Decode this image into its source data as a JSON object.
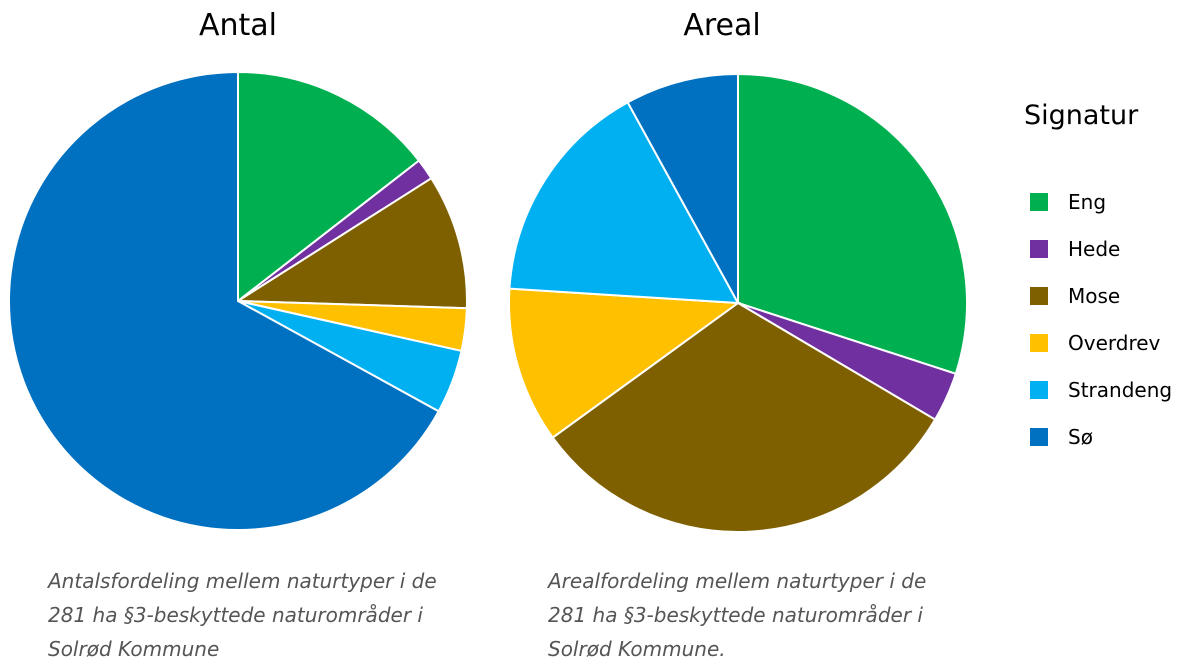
{
  "chart_data": [
    {
      "type": "pie",
      "title": "Antal",
      "categories": [
        "Eng",
        "Hede",
        "Mose",
        "Overdrev",
        "Strandeng",
        "Sø"
      ],
      "values": [
        14.5,
        1.5,
        9.5,
        3.0,
        4.5,
        67.0
      ],
      "caption": "Antalsfordeling mellem naturtyper i de 281 ha §3-beskyttede naturområder i Solrød Kommune"
    },
    {
      "type": "pie",
      "title": "Areal",
      "categories": [
        "Eng",
        "Hede",
        "Mose",
        "Overdrev",
        "Strandeng",
        "Sø"
      ],
      "values": [
        30.0,
        3.5,
        31.5,
        11.0,
        16.0,
        8.0
      ],
      "caption": "Arealfordeling mellem naturtyper i de 281 ha §3-beskyttede naturområder i Solrød Kommune."
    }
  ],
  "legend": {
    "title": "Signatur",
    "items": [
      {
        "label": "Eng",
        "color": "#00b050"
      },
      {
        "label": "Hede",
        "color": "#7030a0"
      },
      {
        "label": "Mose",
        "color": "#7f6000"
      },
      {
        "label": "Overdrev",
        "color": "#ffc000"
      },
      {
        "label": "Strandeng",
        "color": "#00b0f0"
      },
      {
        "label": "Sø",
        "color": "#0070c0"
      }
    ]
  }
}
